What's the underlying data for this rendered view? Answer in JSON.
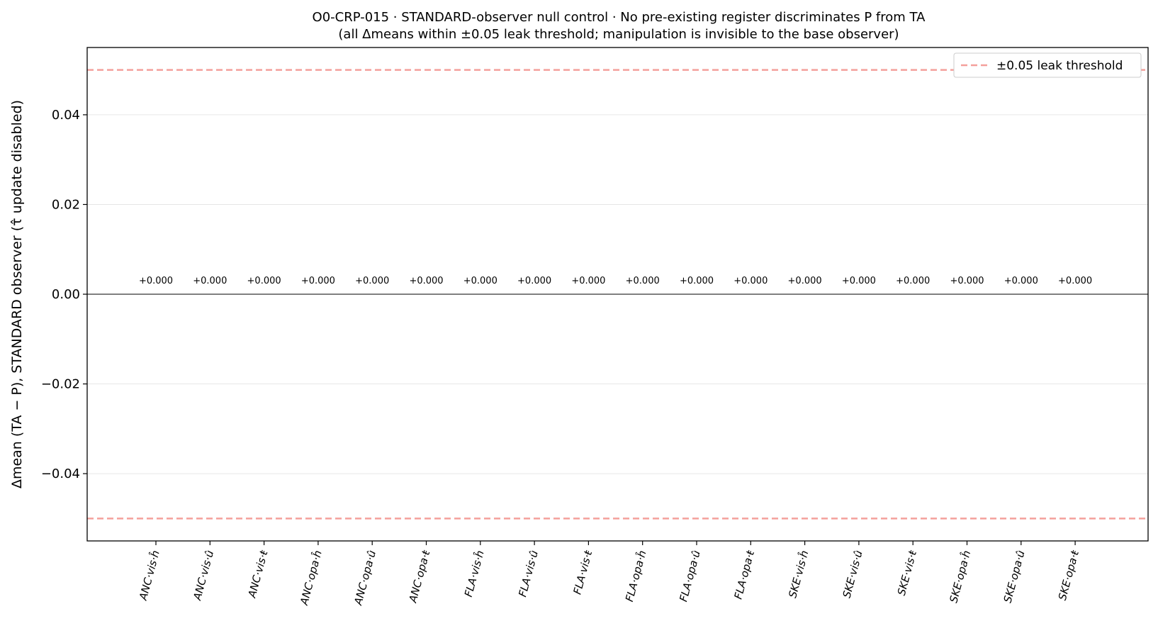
{
  "chart_data": {
    "type": "bar",
    "title": "O0-CRP-015 · STANDARD-observer null control · No pre-existing register discriminates P from TA",
    "subtitle": "(all Δmeans within ±0.05 leak threshold; manipulation is invisible to the base observer)",
    "xlabel": "",
    "ylabel": "Δmean (TA − P), STANDARD observer (τ̂ update disabled)",
    "ylim": [
      -0.055,
      0.055
    ],
    "yticks": [
      -0.04,
      -0.02,
      0.0,
      0.02,
      0.04
    ],
    "ytick_labels": [
      "−0.04",
      "−0.02",
      "0.00",
      "0.02",
      "0.04"
    ],
    "grid": "horizontal",
    "legend_position": "top-right",
    "legend": [
      {
        "label": "±0.05 leak threshold",
        "style": "dashed",
        "color": "#f4a09c"
      }
    ],
    "threshold": [
      -0.05,
      0.05
    ],
    "categories": [
      "ANC·vis·ĥ",
      "ANC·vis·û",
      "ANC·vis·ŧ",
      "ANC·opa·ĥ",
      "ANC·opa·û",
      "ANC·opa·ŧ",
      "FLA·vis·ĥ",
      "FLA·vis·û",
      "FLA·vis·ŧ",
      "FLA·opa·ĥ",
      "FLA·opa·û",
      "FLA·opa·ŧ",
      "SKE·vis·ĥ",
      "SKE·vis·û",
      "SKE·vis·ŧ",
      "SKE·opa·ĥ",
      "SKE·opa·û",
      "SKE·opa·ŧ"
    ],
    "values": [
      0,
      0,
      0,
      0,
      0,
      0,
      0,
      0,
      0,
      0,
      0,
      0,
      0,
      0,
      0,
      0,
      0,
      0
    ],
    "value_labels": [
      "+0.000",
      "+0.000",
      "+0.000",
      "+0.000",
      "+0.000",
      "+0.000",
      "+0.000",
      "+0.000",
      "+0.000",
      "+0.000",
      "+0.000",
      "+0.000",
      "+0.000",
      "+0.000",
      "+0.000",
      "+0.000",
      "+0.000",
      "+0.000"
    ],
    "colors": {
      "threshold": "#f4a09c",
      "zero_line": "#000000",
      "grid": "#e6e6e6"
    }
  }
}
